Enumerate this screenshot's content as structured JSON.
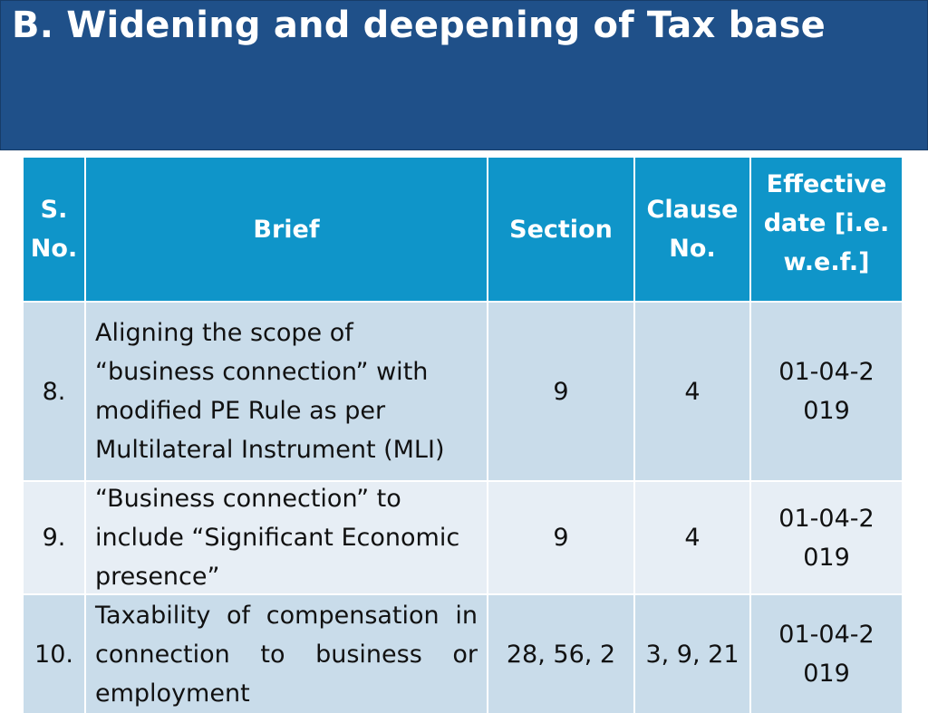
{
  "header": {
    "title": "B. Widening and deepening of Tax base"
  },
  "table": {
    "columns": [
      "S. No.",
      "Brief",
      "Section",
      "Clause No.",
      "Effective date [i.e. w.e.f.]"
    ],
    "rows": [
      [
        "8.",
        "Aligning the scope of “business connection” with modified PE Rule as per Multilateral Instrument (MLI)",
        "9",
        "4",
        "01-04-2019"
      ],
      [
        "9.",
        "“Business connection” to include “Significant Economic presence”",
        "9",
        "4",
        "01-04-2019"
      ],
      [
        "10.",
        "Taxability of compensation in connection to business or employment",
        "28, 56, 2",
        "3, 9, 21",
        "01-04-2019"
      ]
    ]
  }
}
